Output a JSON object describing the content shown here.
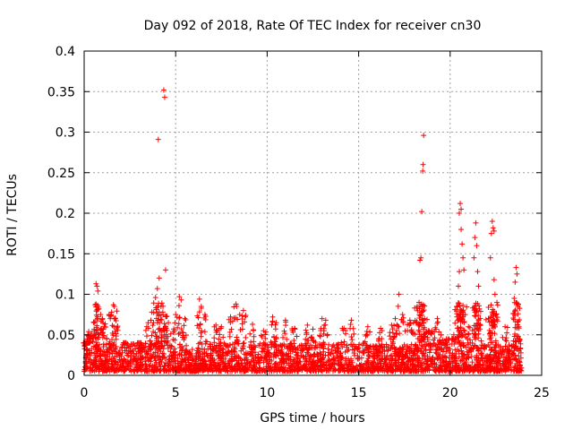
{
  "chart_data": {
    "type": "scatter",
    "title": "Day 092 of 2018, Rate Of TEC Index for receiver cn30",
    "xlabel": "GPS time / hours",
    "ylabel": "ROTI / TECUs",
    "xlim": [
      0,
      25
    ],
    "ylim": [
      0,
      0.4
    ],
    "x_ticks": [
      0,
      5,
      10,
      15,
      20,
      25
    ],
    "x_tick_labels": [
      "0",
      "5",
      "10",
      "15",
      "20",
      "25"
    ],
    "y_ticks": [
      0,
      0.05,
      0.1,
      0.15,
      0.2,
      0.25,
      0.3,
      0.35,
      0.4
    ],
    "y_tick_labels": [
      "0",
      "0.05",
      "0.1",
      "0.15",
      "0.2",
      "0.25",
      "0.3",
      "0.35",
      "0.4"
    ],
    "grid": true,
    "marker": "+",
    "marker_color": "#ff0000",
    "series": [
      {
        "name": "ROTI",
        "x_range": [
          0,
          23.9
        ],
        "baseline_band": [
          0.005,
          0.04
        ],
        "points": [
          {
            "x": 0.1,
            "y": 0.023
          },
          {
            "x": 0.15,
            "y": 0.027
          },
          {
            "x": 0.2,
            "y": 0.05
          },
          {
            "x": 0.25,
            "y": 0.054
          },
          {
            "x": 0.4,
            "y": 0.052
          },
          {
            "x": 0.6,
            "y": 0.087
          },
          {
            "x": 0.65,
            "y": 0.113
          },
          {
            "x": 0.7,
            "y": 0.11
          },
          {
            "x": 0.75,
            "y": 0.104
          },
          {
            "x": 0.8,
            "y": 0.082
          },
          {
            "x": 0.9,
            "y": 0.075
          },
          {
            "x": 1.0,
            "y": 0.07
          },
          {
            "x": 1.1,
            "y": 0.06
          },
          {
            "x": 1.5,
            "y": 0.078
          },
          {
            "x": 1.6,
            "y": 0.087
          },
          {
            "x": 1.65,
            "y": 0.085
          },
          {
            "x": 1.7,
            "y": 0.07
          },
          {
            "x": 2.2,
            "y": 0.04
          },
          {
            "x": 3.0,
            "y": 0.03
          },
          {
            "x": 3.5,
            "y": 0.065
          },
          {
            "x": 3.7,
            "y": 0.078
          },
          {
            "x": 3.9,
            "y": 0.096
          },
          {
            "x": 4.0,
            "y": 0.107
          },
          {
            "x": 4.05,
            "y": 0.291
          },
          {
            "x": 4.1,
            "y": 0.12
          },
          {
            "x": 4.2,
            "y": 0.085
          },
          {
            "x": 4.3,
            "y": 0.078
          },
          {
            "x": 4.35,
            "y": 0.352
          },
          {
            "x": 4.4,
            "y": 0.343
          },
          {
            "x": 4.45,
            "y": 0.13
          },
          {
            "x": 4.6,
            "y": 0.065
          },
          {
            "x": 5.0,
            "y": 0.075
          },
          {
            "x": 5.2,
            "y": 0.097
          },
          {
            "x": 5.3,
            "y": 0.093
          },
          {
            "x": 5.5,
            "y": 0.07
          },
          {
            "x": 6.3,
            "y": 0.094
          },
          {
            "x": 6.4,
            "y": 0.085
          },
          {
            "x": 6.6,
            "y": 0.075
          },
          {
            "x": 7.2,
            "y": 0.062
          },
          {
            "x": 7.5,
            "y": 0.06
          },
          {
            "x": 8.0,
            "y": 0.072
          },
          {
            "x": 8.3,
            "y": 0.088
          },
          {
            "x": 8.5,
            "y": 0.075
          },
          {
            "x": 8.7,
            "y": 0.08
          },
          {
            "x": 9.2,
            "y": 0.063
          },
          {
            "x": 9.8,
            "y": 0.055
          },
          {
            "x": 10.3,
            "y": 0.072
          },
          {
            "x": 10.5,
            "y": 0.065
          },
          {
            "x": 11.0,
            "y": 0.068
          },
          {
            "x": 11.5,
            "y": 0.058
          },
          {
            "x": 12.2,
            "y": 0.062
          },
          {
            "x": 12.5,
            "y": 0.057
          },
          {
            "x": 13.0,
            "y": 0.07
          },
          {
            "x": 13.2,
            "y": 0.068
          },
          {
            "x": 14.2,
            "y": 0.058
          },
          {
            "x": 14.6,
            "y": 0.068
          },
          {
            "x": 15.5,
            "y": 0.06
          },
          {
            "x": 16.2,
            "y": 0.058
          },
          {
            "x": 16.8,
            "y": 0.062
          },
          {
            "x": 17.0,
            "y": 0.07
          },
          {
            "x": 17.2,
            "y": 0.1
          },
          {
            "x": 17.4,
            "y": 0.075
          },
          {
            "x": 17.8,
            "y": 0.068
          },
          {
            "x": 18.0,
            "y": 0.065
          },
          {
            "x": 18.2,
            "y": 0.085
          },
          {
            "x": 18.3,
            "y": 0.09
          },
          {
            "x": 18.35,
            "y": 0.142
          },
          {
            "x": 18.4,
            "y": 0.145
          },
          {
            "x": 18.45,
            "y": 0.202
          },
          {
            "x": 18.5,
            "y": 0.252
          },
          {
            "x": 18.52,
            "y": 0.26
          },
          {
            "x": 18.55,
            "y": 0.296
          },
          {
            "x": 18.6,
            "y": 0.07
          },
          {
            "x": 18.8,
            "y": 0.055
          },
          {
            "x": 19.0,
            "y": 0.055
          },
          {
            "x": 19.3,
            "y": 0.07
          },
          {
            "x": 19.5,
            "y": 0.05
          },
          {
            "x": 19.8,
            "y": 0.045
          },
          {
            "x": 20.2,
            "y": 0.05
          },
          {
            "x": 20.35,
            "y": 0.085
          },
          {
            "x": 20.45,
            "y": 0.11
          },
          {
            "x": 20.5,
            "y": 0.128
          },
          {
            "x": 20.5,
            "y": 0.2
          },
          {
            "x": 20.55,
            "y": 0.212
          },
          {
            "x": 20.6,
            "y": 0.205
          },
          {
            "x": 20.6,
            "y": 0.18
          },
          {
            "x": 20.65,
            "y": 0.162
          },
          {
            "x": 20.7,
            "y": 0.145
          },
          {
            "x": 20.75,
            "y": 0.13
          },
          {
            "x": 21.0,
            "y": 0.06
          },
          {
            "x": 21.3,
            "y": 0.145
          },
          {
            "x": 21.35,
            "y": 0.17
          },
          {
            "x": 21.4,
            "y": 0.188
          },
          {
            "x": 21.45,
            "y": 0.16
          },
          {
            "x": 21.5,
            "y": 0.128
          },
          {
            "x": 21.55,
            "y": 0.11
          },
          {
            "x": 21.6,
            "y": 0.082
          },
          {
            "x": 22.1,
            "y": 0.07
          },
          {
            "x": 22.2,
            "y": 0.145
          },
          {
            "x": 22.25,
            "y": 0.175
          },
          {
            "x": 22.3,
            "y": 0.19
          },
          {
            "x": 22.35,
            "y": 0.182
          },
          {
            "x": 22.4,
            "y": 0.178
          },
          {
            "x": 22.4,
            "y": 0.118
          },
          {
            "x": 22.45,
            "y": 0.1
          },
          {
            "x": 23.0,
            "y": 0.06
          },
          {
            "x": 23.5,
            "y": 0.095
          },
          {
            "x": 23.55,
            "y": 0.115
          },
          {
            "x": 23.6,
            "y": 0.133
          },
          {
            "x": 23.65,
            "y": 0.125
          },
          {
            "x": 23.7,
            "y": 0.085
          },
          {
            "x": 23.75,
            "y": 0.06
          }
        ]
      }
    ]
  }
}
